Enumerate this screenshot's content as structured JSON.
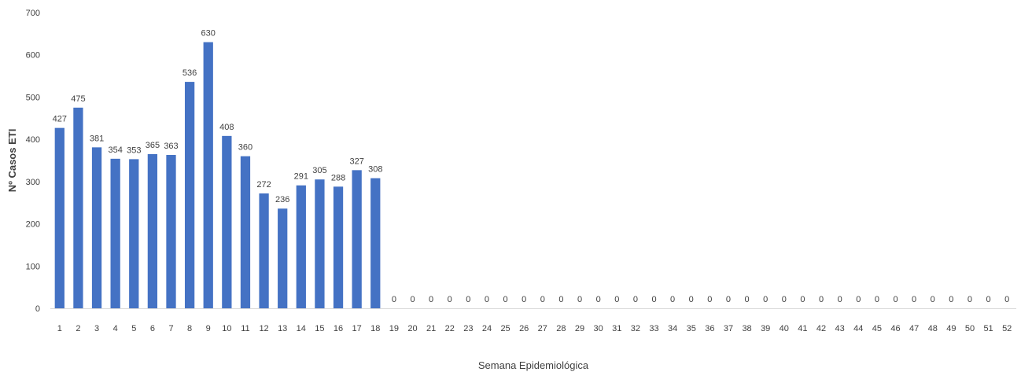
{
  "chart_data": {
    "type": "bar",
    "title": "",
    "xlabel": "Semana Epidemiológica",
    "ylabel": "Nº Casos ETI",
    "ylim": [
      0,
      700
    ],
    "yticks": [
      0,
      100,
      200,
      300,
      400,
      500,
      600,
      700
    ],
    "grid": false,
    "bar_color": "#4472C4",
    "categories": [
      "1",
      "2",
      "3",
      "4",
      "5",
      "6",
      "7",
      "8",
      "9",
      "10",
      "11",
      "12",
      "13",
      "14",
      "15",
      "16",
      "17",
      "18",
      "19",
      "20",
      "21",
      "22",
      "23",
      "24",
      "25",
      "26",
      "27",
      "28",
      "29",
      "30",
      "31",
      "32",
      "33",
      "34",
      "35",
      "36",
      "37",
      "38",
      "39",
      "40",
      "41",
      "42",
      "43",
      "44",
      "45",
      "46",
      "47",
      "48",
      "49",
      "50",
      "51",
      "52"
    ],
    "values": [
      427,
      475,
      381,
      354,
      353,
      365,
      363,
      536,
      630,
      408,
      360,
      272,
      236,
      291,
      305,
      288,
      327,
      308,
      0,
      0,
      0,
      0,
      0,
      0,
      0,
      0,
      0,
      0,
      0,
      0,
      0,
      0,
      0,
      0,
      0,
      0,
      0,
      0,
      0,
      0,
      0,
      0,
      0,
      0,
      0,
      0,
      0,
      0,
      0,
      0,
      0,
      0
    ]
  }
}
